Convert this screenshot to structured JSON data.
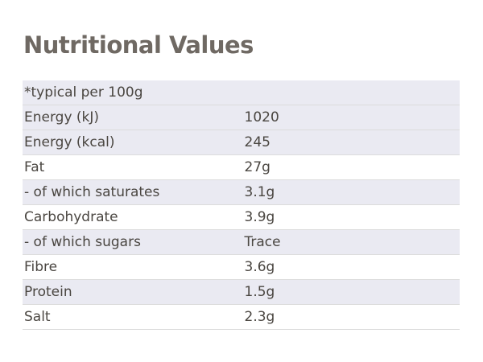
{
  "title": "Nutritional Values",
  "colors": {
    "shaded_row": "#eaeaf2",
    "divider": "#dcdcdc",
    "title_text": "#6f6963",
    "body_text": "#4a4641"
  },
  "table": {
    "header": "*typical per 100g",
    "rows": [
      {
        "name": "Energy (kJ)",
        "value": "1020"
      },
      {
        "name": "Energy (kcal)",
        "value": "245"
      },
      {
        "name": "Fat",
        "value": "27g"
      },
      {
        "name": "- of which saturates",
        "value": "3.1g"
      },
      {
        "name": "Carbohydrate",
        "value": "3.9g"
      },
      {
        "name": "- of which sugars",
        "value": "Trace"
      },
      {
        "name": "Fibre",
        "value": "3.6g"
      },
      {
        "name": "Protein",
        "value": "1.5g"
      },
      {
        "name": "Salt",
        "value": "2.3g"
      }
    ]
  }
}
